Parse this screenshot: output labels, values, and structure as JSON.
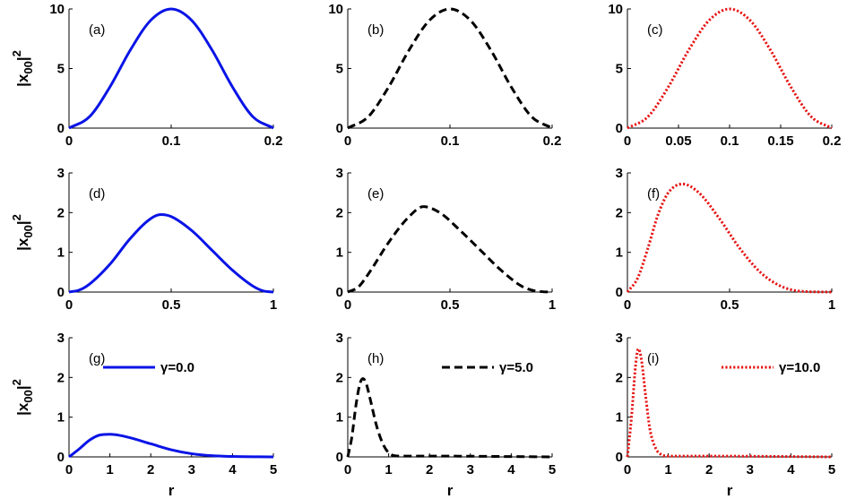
{
  "figure": {
    "ylabel": "|x",
    "ylabel_sub": "00",
    "ylabel_tail": "|",
    "ylabel_sup": "2",
    "xlabel": "r"
  },
  "legend": {
    "blue": "γ=0.0",
    "black": "γ=5.0",
    "red": "γ=10.0"
  },
  "colors": {
    "blue": "#0a14e6",
    "black": "#000000",
    "red": "#e61414"
  },
  "chart_data": [
    {
      "panel": "(a)",
      "type": "line",
      "style": "solid",
      "color": "blue",
      "x": [
        0,
        0.02,
        0.04,
        0.06,
        0.08,
        0.1,
        0.12,
        0.14,
        0.16,
        0.18,
        0.2
      ],
      "y": [
        0,
        0.95,
        3.45,
        6.55,
        9.05,
        10.0,
        9.05,
        6.55,
        3.45,
        0.95,
        0
      ],
      "xlim": [
        0,
        0.2
      ],
      "ylim": [
        0,
        10
      ],
      "xticks": [
        0,
        0.1,
        0.2
      ],
      "xtick_labels": [
        "0",
        "0.1",
        "0.2"
      ],
      "yticks": [
        0,
        5,
        10
      ],
      "ytick_labels": [
        "0",
        "5",
        "10"
      ]
    },
    {
      "panel": "(b)",
      "type": "line",
      "style": "dashed",
      "color": "black",
      "x": [
        0,
        0.02,
        0.04,
        0.06,
        0.08,
        0.1,
        0.12,
        0.14,
        0.16,
        0.18,
        0.2
      ],
      "y": [
        0,
        0.95,
        3.45,
        6.55,
        9.05,
        10.0,
        9.05,
        6.55,
        3.45,
        0.95,
        0
      ],
      "xlim": [
        0,
        0.2
      ],
      "ylim": [
        0,
        10
      ],
      "xticks": [
        0,
        0.1,
        0.2
      ],
      "xtick_labels": [
        "0",
        "0.1",
        "0.2"
      ],
      "yticks": [
        0,
        5,
        10
      ],
      "ytick_labels": [
        "0",
        "5",
        "10"
      ]
    },
    {
      "panel": "(c)",
      "type": "line",
      "style": "dotted",
      "color": "red",
      "x": [
        0,
        0.02,
        0.04,
        0.06,
        0.08,
        0.1,
        0.12,
        0.14,
        0.16,
        0.18,
        0.2
      ],
      "y": [
        0,
        0.95,
        3.45,
        6.55,
        9.05,
        10.0,
        9.05,
        6.55,
        3.45,
        0.95,
        0
      ],
      "xlim": [
        0,
        0.2
      ],
      "ylim": [
        0,
        10
      ],
      "xticks": [
        0,
        0.05,
        0.1,
        0.15,
        0.2
      ],
      "xtick_labels": [
        "0",
        "0.05",
        "0.1",
        "0.15",
        "0.2"
      ],
      "yticks": [
        0,
        5,
        10
      ],
      "ytick_labels": [
        "0",
        "5",
        "10"
      ]
    },
    {
      "panel": "(d)",
      "type": "line",
      "style": "solid",
      "color": "blue",
      "x": [
        0,
        0.05,
        0.1,
        0.2,
        0.3,
        0.4,
        0.45,
        0.5,
        0.6,
        0.7,
        0.8,
        0.9,
        0.95,
        1.0
      ],
      "y": [
        0,
        0.05,
        0.2,
        0.7,
        1.35,
        1.85,
        1.95,
        1.9,
        1.55,
        1.05,
        0.55,
        0.15,
        0.03,
        0
      ],
      "xlim": [
        0,
        1
      ],
      "ylim": [
        0,
        3
      ],
      "xticks": [
        0,
        0.5,
        1
      ],
      "xtick_labels": [
        "0",
        "0.5",
        "1"
      ],
      "yticks": [
        0,
        1,
        2,
        3
      ],
      "ytick_labels": [
        "0",
        "1",
        "2",
        "3"
      ]
    },
    {
      "panel": "(e)",
      "type": "line",
      "style": "dashed",
      "color": "black",
      "x": [
        0,
        0.05,
        0.1,
        0.2,
        0.3,
        0.37,
        0.45,
        0.55,
        0.65,
        0.75,
        0.85,
        0.9,
        0.95,
        1.0
      ],
      "y": [
        0,
        0.12,
        0.45,
        1.25,
        1.9,
        2.15,
        2.0,
        1.55,
        1.05,
        0.55,
        0.15,
        0.05,
        0.01,
        0
      ],
      "xlim": [
        0,
        1
      ],
      "ylim": [
        0,
        3
      ],
      "xticks": [
        0,
        0.5,
        1
      ],
      "xtick_labels": [
        "0",
        "0.5",
        "1"
      ],
      "yticks": [
        0,
        1,
        2,
        3
      ],
      "ytick_labels": [
        "0",
        "1",
        "2",
        "3"
      ]
    },
    {
      "panel": "(f)",
      "type": "line",
      "style": "dotted",
      "color": "red",
      "x": [
        0,
        0.05,
        0.1,
        0.15,
        0.2,
        0.27,
        0.35,
        0.45,
        0.55,
        0.65,
        0.75,
        0.85,
        1.0
      ],
      "y": [
        0,
        0.35,
        1.1,
        1.95,
        2.5,
        2.72,
        2.5,
        1.85,
        1.1,
        0.5,
        0.15,
        0.02,
        0
      ],
      "xlim": [
        0,
        1
      ],
      "ylim": [
        0,
        3
      ],
      "xticks": [
        0,
        0.5,
        1
      ],
      "xtick_labels": [
        "0",
        "0.5",
        "1"
      ],
      "yticks": [
        0,
        1,
        2,
        3
      ],
      "ytick_labels": [
        "0",
        "1",
        "2",
        "3"
      ]
    },
    {
      "panel": "(g)",
      "type": "line",
      "style": "solid",
      "color": "blue",
      "x": [
        0,
        0.25,
        0.5,
        0.75,
        1.0,
        1.25,
        1.5,
        2.0,
        2.5,
        3.0,
        3.5,
        4.0,
        5.0
      ],
      "y": [
        0,
        0.2,
        0.42,
        0.55,
        0.57,
        0.54,
        0.48,
        0.33,
        0.18,
        0.08,
        0.03,
        0.01,
        0
      ],
      "xlim": [
        0,
        5
      ],
      "ylim": [
        0,
        3
      ],
      "xticks": [
        0,
        1,
        2,
        3,
        4,
        5
      ],
      "xtick_labels": [
        "0",
        "1",
        "2",
        "3",
        "4",
        "5"
      ],
      "yticks": [
        0,
        1,
        2,
        3
      ],
      "ytick_labels": [
        "0",
        "1",
        "2",
        "3"
      ],
      "legend": "γ=0.0"
    },
    {
      "panel": "(h)",
      "type": "line",
      "style": "dashed",
      "color": "black",
      "x": [
        0,
        0.1,
        0.2,
        0.3,
        0.37,
        0.45,
        0.55,
        0.7,
        0.85,
        1.0,
        1.1,
        1.3,
        2.0,
        5.0
      ],
      "y": [
        0,
        0.5,
        1.3,
        1.85,
        1.97,
        1.85,
        1.45,
        0.8,
        0.35,
        0.1,
        0.04,
        0.02,
        0.02,
        0
      ],
      "xlim": [
        0,
        5
      ],
      "ylim": [
        0,
        3
      ],
      "xticks": [
        0,
        1,
        2,
        3,
        4,
        5
      ],
      "xtick_labels": [
        "0",
        "1",
        "2",
        "3",
        "4",
        "5"
      ],
      "yticks": [
        0,
        1,
        2,
        3
      ],
      "ytick_labels": [
        "0",
        "1",
        "2",
        "3"
      ],
      "legend": "γ=5.0"
    },
    {
      "panel": "(i)",
      "type": "line",
      "style": "dotted",
      "color": "red",
      "x": [
        0,
        0.1,
        0.2,
        0.27,
        0.35,
        0.45,
        0.55,
        0.7,
        0.85,
        1.0,
        2.0,
        5.0
      ],
      "y": [
        0,
        1.0,
        2.3,
        2.72,
        2.4,
        1.5,
        0.7,
        0.2,
        0.05,
        0.02,
        0.02,
        0
      ],
      "xlim": [
        0,
        5
      ],
      "ylim": [
        0,
        3
      ],
      "xticks": [
        0,
        1,
        2,
        3,
        4,
        5
      ],
      "xtick_labels": [
        "0",
        "1",
        "2",
        "3",
        "4",
        "5"
      ],
      "yticks": [
        0,
        1,
        2,
        3
      ],
      "ytick_labels": [
        "0",
        "1",
        "2",
        "3"
      ],
      "legend": "γ=10.0"
    }
  ]
}
